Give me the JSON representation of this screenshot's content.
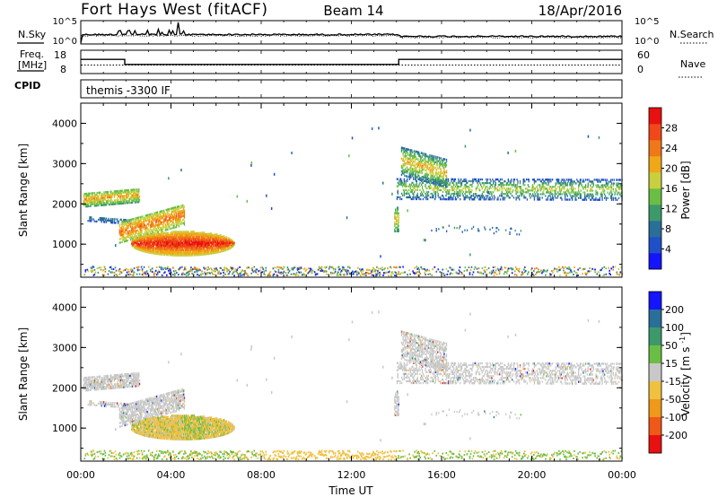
{
  "header": {
    "station": "Fort Hays West (fitACF)",
    "beam": "Beam 14",
    "date": "18/Apr/2016"
  },
  "noise_panel": {
    "left_label": "N.Sky",
    "right_label": "N.Search",
    "tick_hi": "10^5",
    "tick_lo": "10^0"
  },
  "freq_panel": {
    "label_line1": "Freq.",
    "label_line2": "[MHz]",
    "left_ticks": [
      "18",
      "8"
    ],
    "right_ticks": [
      "60",
      "0"
    ],
    "right_label": "Nave"
  },
  "cpid_panel": {
    "label": "CPID",
    "text": "themis -3300 IF"
  },
  "colors": {
    "power": [
      "#1414ff",
      "#2050c8",
      "#2a6e9a",
      "#3c9a6a",
      "#6abe44",
      "#c8d040",
      "#f0a818",
      "#f07818",
      "#f04818",
      "#e81010"
    ],
    "velocity": [
      "#e81010",
      "#f05818",
      "#f09818",
      "#f0c040",
      "#c8c8c8",
      "#6abe44",
      "#3c9a6a",
      "#2a6e9a",
      "#1414ff"
    ]
  },
  "chart_data": [
    {
      "type": "heatmap",
      "name": "power",
      "ylabel": "Slant Range [km]",
      "ylim": [
        180,
        4500
      ],
      "y_ticks": [
        "1000",
        "2000",
        "3000",
        "4000"
      ],
      "colorbar_label": "Power [dB]",
      "colorbar_ticks": [
        "4",
        "8",
        "12",
        "16",
        "20",
        "24",
        "28"
      ],
      "colorbar_range": [
        0,
        32
      ]
    },
    {
      "type": "heatmap",
      "name": "velocity",
      "ylabel": "Slant Range [km]",
      "ylim": [
        180,
        4500
      ],
      "y_ticks": [
        "1000",
        "2000",
        "3000",
        "4000"
      ],
      "colorbar_label": "Velocity [m s^-1]",
      "colorbar_ticks": [
        "200",
        "100",
        "50",
        "15",
        "-15",
        "-50",
        "-100",
        "-200"
      ]
    }
  ],
  "x_axis": {
    "label": "Time UT",
    "ticks": [
      "00:00",
      "04:00",
      "08:00",
      "12:00",
      "16:00",
      "20:00",
      "00:00"
    ],
    "range_hours": [
      0,
      24
    ]
  }
}
